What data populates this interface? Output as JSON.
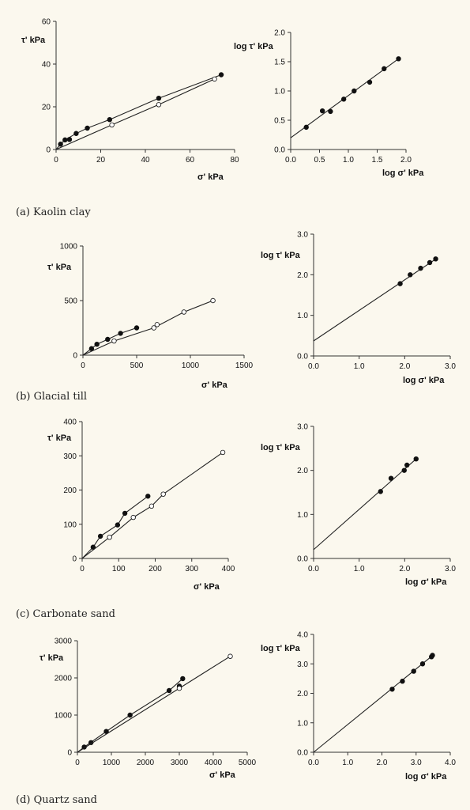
{
  "figure": {
    "panels": [
      {
        "caption": "(a) Kaolin clay"
      },
      {
        "caption": "(b) Glacial till"
      },
      {
        "caption": "(c) Carbonate sand"
      },
      {
        "caption": "(d) Quartz sand"
      }
    ]
  },
  "chart_data": [
    {
      "id": "a-linear",
      "type": "scatter",
      "xlabel": "σ' kPa",
      "ylabel": "τ' kPa",
      "xlim": [
        0,
        80
      ],
      "ylim": [
        0,
        60
      ],
      "xticks": [
        "0",
        "20",
        "40",
        "60",
        "80"
      ],
      "yticks": [
        "0",
        "20",
        "40",
        "60"
      ],
      "series": [
        {
          "marker": "filled",
          "points": [
            [
              2,
              2.5
            ],
            [
              4,
              4.5
            ],
            [
              6,
              4.7
            ],
            [
              9,
              7.5
            ],
            [
              14,
              10
            ],
            [
              24,
              14
            ],
            [
              46,
              24
            ],
            [
              74,
              35
            ]
          ],
          "line": [
            [
              0,
              0
            ],
            [
              2,
              2.5
            ],
            [
              4,
              4.5
            ],
            [
              9,
              7.5
            ],
            [
              14,
              10
            ],
            [
              24,
              14
            ],
            [
              46,
              24
            ],
            [
              74,
              35
            ]
          ]
        },
        {
          "marker": "open",
          "points": [
            [
              25,
              11.5
            ],
            [
              46,
              21
            ],
            [
              71,
              33
            ]
          ],
          "line": [
            [
              0,
              0
            ],
            [
              25,
              11.5
            ],
            [
              46,
              21
            ],
            [
              71,
              33
            ]
          ]
        }
      ]
    },
    {
      "id": "a-log",
      "type": "scatter",
      "xlabel": "log σ' kPa",
      "ylabel": "log τ' kPa",
      "xlim": [
        0,
        2.0
      ],
      "ylim": [
        0,
        2.0
      ],
      "xticks": [
        "0.0",
        "0.5",
        "1.0",
        "1.5",
        "2.0"
      ],
      "yticks": [
        "0.0",
        "0.5",
        "1.0",
        "1.5",
        "2.0"
      ],
      "series": [
        {
          "marker": "filled",
          "points": [
            [
              0.27,
              0.38
            ],
            [
              0.55,
              0.66
            ],
            [
              0.69,
              0.65
            ],
            [
              0.92,
              0.86
            ],
            [
              1.1,
              1.0
            ],
            [
              1.37,
              1.15
            ],
            [
              1.62,
              1.38
            ],
            [
              1.87,
              1.55
            ]
          ],
          "line": [
            [
              0,
              0.2
            ],
            [
              1.87,
              1.55
            ]
          ]
        }
      ]
    },
    {
      "id": "b-linear",
      "type": "scatter",
      "xlabel": "σ' kPa",
      "ylabel": "τ' kPa",
      "xlim": [
        0,
        1500
      ],
      "ylim": [
        0,
        1000
      ],
      "xticks": [
        "0",
        "500",
        "1000",
        "1500"
      ],
      "yticks": [
        "0",
        "500",
        "1000"
      ],
      "series": [
        {
          "marker": "filled",
          "points": [
            [
              80,
              60
            ],
            [
              130,
              100
            ],
            [
              230,
              145
            ],
            [
              350,
              200
            ],
            [
              500,
              250
            ]
          ],
          "line": [
            [
              0,
              0
            ],
            [
              80,
              60
            ],
            [
              130,
              100
            ],
            [
              230,
              145
            ],
            [
              350,
              200
            ],
            [
              500,
              250
            ]
          ]
        },
        {
          "marker": "open",
          "points": [
            [
              290,
              130
            ],
            [
              660,
              250
            ],
            [
              690,
              280
            ],
            [
              940,
              395
            ],
            [
              1210,
              500
            ]
          ],
          "line": [
            [
              0,
              0
            ],
            [
              290,
              130
            ],
            [
              660,
              250
            ],
            [
              940,
              395
            ],
            [
              1210,
              500
            ]
          ]
        }
      ]
    },
    {
      "id": "b-log",
      "type": "scatter",
      "xlabel": "log σ' kPa",
      "ylabel": "log τ' kPa",
      "xlim": [
        0,
        3.0
      ],
      "ylim": [
        0,
        3.0
      ],
      "xticks": [
        "0.0",
        "1.0",
        "2.0",
        "3.0"
      ],
      "yticks": [
        "0.0",
        "1.0",
        "2.0",
        "3.0"
      ],
      "series": [
        {
          "marker": "filled",
          "points": [
            [
              1.9,
              1.78
            ],
            [
              2.12,
              2.0
            ],
            [
              2.35,
              2.16
            ],
            [
              2.55,
              2.3
            ],
            [
              2.68,
              2.39
            ]
          ],
          "line": [
            [
              0,
              0.37
            ],
            [
              2.7,
              2.4
            ]
          ]
        }
      ]
    },
    {
      "id": "c-linear",
      "type": "scatter",
      "xlabel": "σ' kPa",
      "ylabel": "τ' kPa",
      "xlim": [
        0,
        400
      ],
      "ylim": [
        0,
        400
      ],
      "xticks": [
        "0",
        "100",
        "200",
        "300",
        "400"
      ],
      "yticks": [
        "0",
        "100",
        "200",
        "300",
        "400"
      ],
      "series": [
        {
          "marker": "filled",
          "points": [
            [
              30,
              33
            ],
            [
              50,
              65
            ],
            [
              97,
              98
            ],
            [
              117,
              132
            ],
            [
              180,
              182
            ]
          ],
          "line": [
            [
              0,
              0
            ],
            [
              30,
              33
            ],
            [
              50,
              65
            ],
            [
              97,
              98
            ],
            [
              117,
              132
            ],
            [
              180,
              182
            ]
          ]
        },
        {
          "marker": "open",
          "points": [
            [
              75,
              62
            ],
            [
              140,
              120
            ],
            [
              190,
              153
            ],
            [
              222,
              188
            ],
            [
              385,
              310
            ]
          ],
          "line": [
            [
              0,
              0
            ],
            [
              75,
              62
            ],
            [
              140,
              120
            ],
            [
              190,
              153
            ],
            [
              222,
              188
            ],
            [
              385,
              310
            ]
          ]
        }
      ]
    },
    {
      "id": "c-log",
      "type": "scatter",
      "xlabel": "log σ' kPa",
      "ylabel": "log τ' kPa",
      "xlim": [
        0,
        3.0
      ],
      "ylim": [
        0,
        3.0
      ],
      "xticks": [
        "0.0",
        "1.0",
        "2.0",
        "3.0"
      ],
      "yticks": [
        "0.0",
        "1.0",
        "2.0",
        "3.0"
      ],
      "series": [
        {
          "marker": "filled",
          "points": [
            [
              1.47,
              1.52
            ],
            [
              1.7,
              1.82
            ],
            [
              1.99,
              2.0
            ],
            [
              2.05,
              2.12
            ],
            [
              2.25,
              2.26
            ]
          ],
          "line": [
            [
              0,
              0.2
            ],
            [
              2.25,
              2.26
            ]
          ]
        }
      ]
    },
    {
      "id": "d-linear",
      "type": "scatter",
      "xlabel": "σ' kPa",
      "ylabel": "τ' kPa",
      "xlim": [
        0,
        5000
      ],
      "ylim": [
        0,
        3000
      ],
      "xticks": [
        "0",
        "1000",
        "2000",
        "3000",
        "4000",
        "5000"
      ],
      "yticks": [
        "0",
        "1000",
        "2000",
        "3000"
      ],
      "series": [
        {
          "marker": "filled",
          "points": [
            [
              200,
              140
            ],
            [
              400,
              260
            ],
            [
              850,
              560
            ],
            [
              1550,
              1000
            ],
            [
              2700,
              1660
            ],
            [
              3000,
              1780
            ],
            [
              3100,
              1980
            ]
          ],
          "line": [
            [
              0,
              0
            ],
            [
              200,
              140
            ],
            [
              850,
              560
            ],
            [
              1550,
              1000
            ],
            [
              2700,
              1660
            ],
            [
              3100,
              1980
            ]
          ]
        },
        {
          "marker": "open",
          "points": [
            [
              3000,
              1720
            ],
            [
              4500,
              2580
            ]
          ],
          "line": [
            [
              0,
              0
            ],
            [
              4500,
              2580
            ]
          ]
        }
      ]
    },
    {
      "id": "d-log",
      "type": "scatter",
      "xlabel": "log σ' kPa",
      "ylabel": "log τ' kPa",
      "xlim": [
        0,
        4.0
      ],
      "ylim": [
        0,
        4.0
      ],
      "xticks": [
        "0.0",
        "1.0",
        "2.0",
        "3.0",
        "4.0"
      ],
      "yticks": [
        "0.0",
        "1.0",
        "2.0",
        "3.0",
        "4.0"
      ],
      "series": [
        {
          "marker": "filled",
          "points": [
            [
              2.3,
              2.14
            ],
            [
              2.6,
              2.41
            ],
            [
              2.93,
              2.75
            ],
            [
              3.19,
              3.0
            ],
            [
              3.45,
              3.24
            ],
            [
              3.48,
              3.29
            ]
          ],
          "line": [
            [
              0,
              0
            ],
            [
              3.48,
              3.28
            ]
          ]
        }
      ]
    }
  ]
}
